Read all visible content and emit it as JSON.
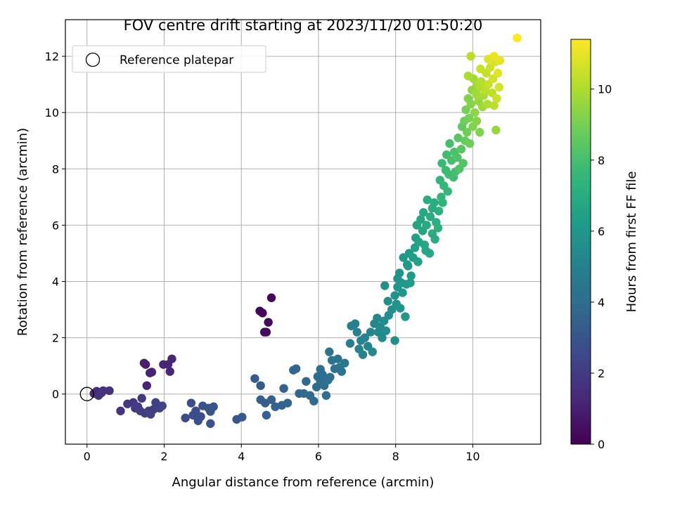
{
  "chart_data": {
    "type": "scatter",
    "title": "FOV centre drift starting at 2023/11/20 01:50:20",
    "xlabel": "Angular distance from reference (arcmin)",
    "ylabel": "Rotation from reference (arcmin)",
    "xlim": [
      -0.56,
      11.76
    ],
    "ylim": [
      -1.78,
      13.3
    ],
    "xticks": [
      0,
      2,
      4,
      6,
      8,
      10
    ],
    "yticks": [
      0,
      2,
      4,
      6,
      8,
      10,
      12
    ],
    "grid": true,
    "legend": {
      "location": "top-left",
      "entries": [
        "Reference platepar"
      ]
    },
    "reference_point": {
      "x": 0,
      "y": 0,
      "label": "Reference platepar"
    },
    "colorbar": {
      "label": "Hours from first FF file",
      "range": [
        0,
        11.4
      ],
      "ticks": [
        0,
        2,
        4,
        6,
        8,
        10
      ],
      "colormap": "viridis"
    },
    "colormap_stops": [
      "#440154",
      "#482878",
      "#3e4989",
      "#31688e",
      "#26828e",
      "#1f9e89",
      "#35b779",
      "#6ece58",
      "#b5de2b",
      "#fde725"
    ],
    "points": [
      [
        0.18,
        0.02,
        1.3
      ],
      [
        0.25,
        0.1,
        1.4
      ],
      [
        0.33,
        0.0,
        1.5
      ],
      [
        0.42,
        0.12,
        1.5
      ],
      [
        0.3,
        -0.05,
        1.6
      ],
      [
        0.58,
        0.12,
        1.6
      ],
      [
        0.38,
        0.05,
        1.7
      ],
      [
        1.48,
        1.1,
        1.0
      ],
      [
        1.52,
        1.05,
        1.0
      ],
      [
        1.63,
        0.75,
        1.1
      ],
      [
        1.55,
        0.3,
        1.2
      ],
      [
        1.68,
        0.78,
        1.1
      ],
      [
        1.98,
        1.05,
        1.2
      ],
      [
        2.1,
        1.05,
        1.2
      ],
      [
        2.2,
        1.25,
        1.2
      ],
      [
        2.15,
        0.8,
        1.25
      ],
      [
        4.48,
        2.95,
        0.2
      ],
      [
        4.55,
        2.88,
        0.2
      ],
      [
        4.6,
        2.2,
        0.3
      ],
      [
        4.7,
        2.55,
        0.3
      ],
      [
        4.78,
        3.42,
        0.2
      ],
      [
        4.65,
        2.2,
        0.35
      ],
      [
        0.87,
        -0.6,
        1.8
      ],
      [
        1.05,
        -0.35,
        1.9
      ],
      [
        1.2,
        -0.3,
        1.9
      ],
      [
        1.25,
        -0.5,
        2.0
      ],
      [
        1.32,
        -0.45,
        2.0
      ],
      [
        1.38,
        -0.6,
        2.1
      ],
      [
        1.42,
        -0.15,
        1.9
      ],
      [
        1.5,
        -0.68,
        2.0
      ],
      [
        1.6,
        -0.6,
        2.1
      ],
      [
        1.65,
        -0.72,
        2.2
      ],
      [
        1.72,
        -0.55,
        2.1
      ],
      [
        1.78,
        -0.3,
        2.2
      ],
      [
        1.88,
        -0.5,
        2.2
      ],
      [
        1.95,
        -0.42,
        2.3
      ],
      [
        2.55,
        -0.85,
        2.6
      ],
      [
        2.7,
        -0.32,
        2.7
      ],
      [
        2.75,
        -0.75,
        2.7
      ],
      [
        2.82,
        -0.6,
        2.8
      ],
      [
        2.88,
        -0.95,
        2.8
      ],
      [
        2.95,
        -0.8,
        2.8
      ],
      [
        3.0,
        -0.42,
        2.9
      ],
      [
        3.15,
        -0.5,
        2.9
      ],
      [
        3.2,
        -1.05,
        3.0
      ],
      [
        3.2,
        -0.62,
        3.0
      ],
      [
        3.28,
        -0.45,
        3.0
      ],
      [
        3.88,
        -0.9,
        3.1
      ],
      [
        4.02,
        -0.82,
        3.2
      ],
      [
        4.35,
        0.55,
        3.3
      ],
      [
        4.5,
        0.3,
        3.3
      ],
      [
        4.5,
        -0.2,
        3.4
      ],
      [
        4.62,
        -0.32,
        3.4
      ],
      [
        4.65,
        -0.75,
        3.5
      ],
      [
        4.78,
        -0.2,
        3.5
      ],
      [
        4.88,
        -0.45,
        3.5
      ],
      [
        5.1,
        0.2,
        3.6
      ],
      [
        5.05,
        -0.4,
        3.6
      ],
      [
        5.2,
        -0.32,
        3.7
      ],
      [
        5.35,
        0.85,
        3.7
      ],
      [
        5.42,
        0.9,
        3.7
      ],
      [
        5.5,
        0.02,
        3.8
      ],
      [
        5.62,
        0.02,
        3.8
      ],
      [
        5.68,
        0.45,
        3.9
      ],
      [
        5.78,
        -0.05,
        3.9
      ],
      [
        5.88,
        -0.25,
        3.9
      ],
      [
        5.95,
        0.25,
        4.0
      ],
      [
        5.98,
        0.62,
        4.0
      ],
      [
        6.05,
        0.88,
        4.1
      ],
      [
        6.1,
        0.7,
        4.1
      ],
      [
        6.15,
        0.3,
        4.1
      ],
      [
        6.2,
        -0.05,
        4.2
      ],
      [
        6.25,
        0.5,
        4.2
      ],
      [
        6.28,
        1.5,
        4.3
      ],
      [
        6.35,
        1.2,
        4.3
      ],
      [
        6.42,
        0.9,
        4.3
      ],
      [
        6.5,
        1.25,
        4.4
      ],
      [
        6.55,
        0.95,
        4.4
      ],
      [
        6.6,
        0.8,
        4.4
      ],
      [
        6.68,
        1.1,
        4.5
      ],
      [
        6.05,
        0.45,
        4.0
      ],
      [
        6.3,
        0.6,
        4.2
      ],
      [
        6.82,
        1.8,
        4.8
      ],
      [
        6.85,
        2.42,
        4.9
      ],
      [
        6.95,
        2.5,
        4.9
      ],
      [
        7.0,
        2.2,
        5.0
      ],
      [
        7.05,
        1.6,
        5.0
      ],
      [
        7.1,
        1.9,
        5.1
      ],
      [
        7.15,
        1.4,
        5.1
      ],
      [
        7.2,
        2.0,
        5.1
      ],
      [
        7.28,
        1.7,
        5.2
      ],
      [
        7.35,
        2.2,
        5.2
      ],
      [
        7.4,
        1.5,
        5.3
      ],
      [
        7.45,
        2.5,
        5.3
      ],
      [
        7.52,
        2.7,
        5.3
      ],
      [
        7.55,
        2.2,
        5.4
      ],
      [
        7.6,
        2.4,
        5.4
      ],
      [
        7.65,
        2.0,
        5.4
      ],
      [
        7.7,
        2.6,
        5.5
      ],
      [
        7.75,
        2.25,
        5.5
      ],
      [
        7.82,
        2.8,
        5.5
      ],
      [
        7.9,
        3.0,
        5.6
      ],
      [
        7.98,
        1.9,
        5.6
      ],
      [
        7.72,
        3.85,
        5.7
      ],
      [
        7.8,
        3.3,
        5.6
      ],
      [
        7.98,
        3.5,
        5.8
      ],
      [
        8.02,
        3.2,
        5.8
      ],
      [
        8.05,
        3.8,
        5.9
      ],
      [
        8.1,
        4.3,
        5.9
      ],
      [
        8.12,
        3.05,
        5.9
      ],
      [
        8.18,
        3.6,
        6.0
      ],
      [
        8.2,
        4.85,
        6.0
      ],
      [
        8.25,
        2.75,
        6.0
      ],
      [
        8.28,
        3.9,
        6.1
      ],
      [
        8.32,
        4.55,
        6.1
      ],
      [
        8.35,
        5.0,
        6.2
      ],
      [
        8.38,
        3.95,
        6.2
      ],
      [
        8.4,
        4.2,
        6.2
      ],
      [
        8.3,
        4.6,
        6.1
      ],
      [
        8.15,
        3.95,
        5.95
      ],
      [
        8.05,
        4.1,
        5.9
      ],
      [
        8.45,
        4.85,
        6.4
      ],
      [
        8.5,
        5.2,
        6.5
      ],
      [
        8.52,
        5.55,
        6.5
      ],
      [
        8.55,
        6.0,
        6.6
      ],
      [
        8.58,
        4.7,
        6.5
      ],
      [
        8.6,
        5.4,
        6.6
      ],
      [
        8.65,
        6.2,
        6.7
      ],
      [
        8.7,
        5.8,
        6.7
      ],
      [
        8.72,
        6.45,
        6.8
      ],
      [
        8.75,
        5.3,
        6.7
      ],
      [
        8.8,
        6.0,
        6.9
      ],
      [
        8.82,
        6.9,
        7.0
      ],
      [
        8.88,
        5.0,
        6.8
      ],
      [
        8.9,
        6.3,
        7.0
      ],
      [
        8.95,
        5.7,
        7.0
      ],
      [
        9.0,
        6.8,
        7.1
      ],
      [
        9.02,
        5.5,
        7.0
      ],
      [
        9.05,
        6.1,
        7.1
      ],
      [
        9.1,
        5.9,
        7.2
      ],
      [
        9.12,
        6.5,
        7.2
      ],
      [
        8.95,
        6.6,
        7.05
      ],
      [
        8.78,
        5.1,
        6.75
      ],
      [
        9.15,
        7.6,
        7.5
      ],
      [
        9.18,
        7.0,
        7.5
      ],
      [
        9.2,
        8.2,
        7.7
      ],
      [
        9.22,
        6.8,
        7.4
      ],
      [
        9.25,
        7.4,
        7.6
      ],
      [
        9.3,
        7.95,
        7.7
      ],
      [
        9.32,
        8.5,
        7.9
      ],
      [
        9.35,
        7.2,
        7.6
      ],
      [
        9.38,
        7.8,
        7.8
      ],
      [
        9.4,
        8.9,
        8.0
      ],
      [
        9.45,
        8.3,
        8.0
      ],
      [
        9.5,
        7.7,
        7.9
      ],
      [
        9.52,
        8.6,
        8.1
      ],
      [
        9.55,
        7.9,
        8.0
      ],
      [
        9.6,
        8.4,
        8.2
      ],
      [
        9.62,
        9.1,
        8.4
      ],
      [
        9.65,
        8.0,
        8.2
      ],
      [
        9.7,
        8.7,
        8.4
      ],
      [
        9.72,
        9.5,
        8.6
      ],
      [
        9.75,
        8.2,
        8.3
      ],
      [
        9.78,
        9.7,
        8.8
      ],
      [
        9.8,
        9.0,
        8.7
      ],
      [
        9.82,
        10.1,
        9.0
      ],
      [
        9.85,
        9.3,
        8.9
      ],
      [
        9.88,
        10.5,
        9.2
      ],
      [
        9.9,
        9.8,
        9.0
      ],
      [
        9.92,
        8.9,
        8.8
      ],
      [
        9.95,
        10.3,
        9.3
      ],
      [
        9.98,
        10.8,
        9.5
      ],
      [
        10.0,
        9.5,
        9.2
      ],
      [
        10.02,
        11.2,
        9.8
      ],
      [
        10.05,
        10.0,
        9.4
      ],
      [
        10.08,
        10.7,
        9.7
      ],
      [
        10.1,
        9.7,
        9.3
      ],
      [
        10.12,
        11.0,
        9.9
      ],
      [
        10.15,
        10.4,
        9.6
      ],
      [
        10.18,
        9.3,
        9.2
      ],
      [
        10.2,
        10.9,
        10.0
      ],
      [
        10.22,
        11.1,
        10.1
      ],
      [
        10.25,
        10.2,
        9.7
      ],
      [
        10.28,
        10.6,
        9.9
      ],
      [
        9.88,
        11.3,
        9.95
      ],
      [
        9.95,
        12.0,
        10.2
      ],
      [
        10.32,
        10.8,
        10.2
      ],
      [
        10.35,
        11.4,
        10.4
      ],
      [
        10.38,
        10.3,
        10.0
      ],
      [
        10.4,
        11.0,
        10.4
      ],
      [
        10.45,
        11.6,
        10.6
      ],
      [
        10.5,
        10.7,
        10.3
      ],
      [
        10.52,
        11.2,
        10.6
      ],
      [
        10.55,
        10.25,
        10.2
      ],
      [
        10.58,
        11.8,
        10.8
      ],
      [
        10.6,
        9.38,
        9.6
      ],
      [
        10.62,
        10.5,
        10.5
      ],
      [
        10.65,
        11.4,
        10.9
      ],
      [
        10.68,
        10.9,
        10.7
      ],
      [
        10.7,
        11.85,
        11.0
      ],
      [
        10.55,
        12.0,
        11.1
      ],
      [
        10.4,
        11.9,
        10.9
      ],
      [
        10.2,
        11.55,
        10.5
      ],
      [
        10.12,
        10.6,
        9.8
      ],
      [
        11.15,
        12.65,
        11.4
      ]
    ]
  }
}
